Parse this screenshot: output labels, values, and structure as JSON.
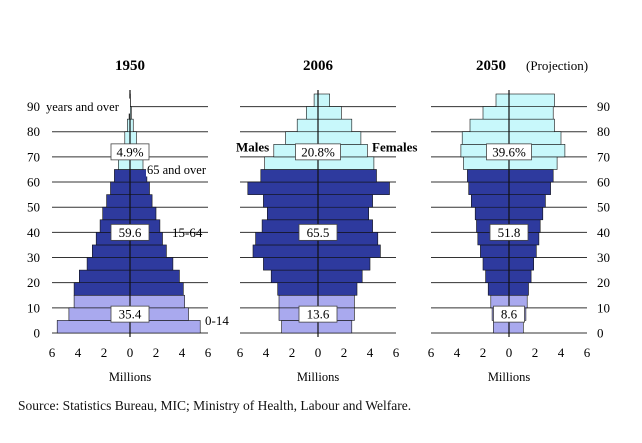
{
  "chart_data": {
    "type": "population-pyramid",
    "x_unit": "Millions",
    "x_ticks": [
      6,
      4,
      2,
      0,
      2,
      4,
      6
    ],
    "xlim": [
      -6,
      6
    ],
    "y_ticks": [
      0,
      10,
      20,
      30,
      40,
      50,
      60,
      70,
      80,
      90
    ],
    "age_groups": [
      "0-4",
      "5-9",
      "10-14",
      "15-19",
      "20-24",
      "25-29",
      "30-34",
      "35-39",
      "40-44",
      "45-49",
      "50-54",
      "55-59",
      "60-64",
      "65-69",
      "70-74",
      "75-79",
      "80-84",
      "85-89",
      "90+"
    ],
    "band_colors": {
      "young": "#a9a9ee",
      "working": "#2e3a9e",
      "old": "#c8f8fb",
      "stroke": "#111111"
    },
    "panels": [
      {
        "title": "1950",
        "male": [
          5.6,
          4.7,
          4.3,
          4.3,
          3.9,
          3.3,
          2.9,
          2.6,
          2.3,
          2.1,
          1.8,
          1.5,
          1.2,
          0.9,
          0.65,
          0.4,
          0.2,
          0.07,
          0.02
        ],
        "female": [
          5.4,
          4.5,
          4.2,
          4.1,
          3.8,
          3.3,
          2.8,
          2.5,
          2.3,
          2.0,
          1.7,
          1.5,
          1.3,
          1.0,
          0.75,
          0.5,
          0.25,
          0.1,
          0.03
        ],
        "shares": [
          "35.4",
          "59.6",
          "4.9%"
        ],
        "labels": {
          "top": "years and over",
          "young": "0-14",
          "working": "15-64",
          "old": "65 and over"
        }
      },
      {
        "title": "2006",
        "male": [
          2.8,
          3.0,
          3.0,
          3.1,
          3.6,
          4.2,
          5.0,
          4.8,
          4.3,
          3.9,
          4.2,
          5.4,
          4.4,
          4.1,
          3.4,
          2.5,
          1.6,
          0.9,
          0.3
        ],
        "female": [
          2.6,
          2.8,
          2.8,
          3.0,
          3.4,
          4.0,
          4.8,
          4.6,
          4.2,
          3.9,
          4.2,
          5.5,
          4.5,
          4.3,
          3.8,
          3.3,
          2.6,
          1.8,
          0.9
        ],
        "shares": [
          "13.6",
          "65.5",
          "20.8%"
        ],
        "labels": {
          "males": "Males",
          "females": "Females"
        }
      },
      {
        "title": "2050",
        "subtitle": "(Projection)",
        "male": [
          1.2,
          1.3,
          1.4,
          1.6,
          1.8,
          2.0,
          2.2,
          2.4,
          2.5,
          2.6,
          2.9,
          3.1,
          3.2,
          3.5,
          3.7,
          3.6,
          3.0,
          2.0,
          1.0
        ],
        "female": [
          1.1,
          1.3,
          1.4,
          1.5,
          1.7,
          1.9,
          2.1,
          2.3,
          2.4,
          2.6,
          2.8,
          3.2,
          3.4,
          3.7,
          4.3,
          4.0,
          3.5,
          3.4,
          3.5
        ],
        "shares": [
          "8.6",
          "51.8",
          "39.6%"
        ],
        "labels": {}
      }
    ]
  },
  "axis_label": "Millions",
  "source": "Source:  Statistics Bureau, MIC;  Ministry of Health, Labour and Welfare."
}
